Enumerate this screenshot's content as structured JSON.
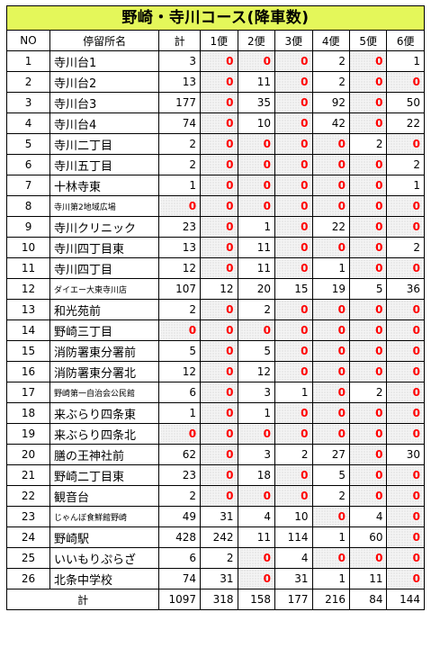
{
  "title": "野崎・寺川コース(降車数)",
  "headers": [
    "NO",
    "停留所名",
    "計",
    "1便",
    "2便",
    "3便",
    "4便",
    "5便",
    "6便"
  ],
  "rows": [
    {
      "no": "1",
      "name": "寺川台1",
      "total": 3,
      "trips": [
        0,
        0,
        0,
        2,
        0,
        1
      ]
    },
    {
      "no": "2",
      "name": "寺川台2",
      "total": 13,
      "trips": [
        0,
        11,
        0,
        2,
        0,
        0
      ]
    },
    {
      "no": "3",
      "name": "寺川台3",
      "total": 177,
      "trips": [
        0,
        35,
        0,
        92,
        0,
        50
      ]
    },
    {
      "no": "4",
      "name": "寺川台4",
      "total": 74,
      "trips": [
        0,
        10,
        0,
        42,
        0,
        22
      ]
    },
    {
      "no": "5",
      "name": "寺川二丁目",
      "total": 2,
      "trips": [
        0,
        0,
        0,
        0,
        2,
        0
      ]
    },
    {
      "no": "6",
      "name": "寺川五丁目",
      "total": 2,
      "trips": [
        0,
        0,
        0,
        0,
        0,
        2
      ]
    },
    {
      "no": "7",
      "name": "十林寺東",
      "total": 1,
      "trips": [
        0,
        0,
        0,
        0,
        0,
        1
      ]
    },
    {
      "no": "8",
      "name": "寺川第2地域広場",
      "total": 0,
      "trips": [
        0,
        0,
        0,
        0,
        0,
        0
      ]
    },
    {
      "no": "9",
      "name": "寺川クリニック",
      "total": 23,
      "trips": [
        0,
        1,
        0,
        22,
        0,
        0
      ]
    },
    {
      "no": "10",
      "name": "寺川四丁目東",
      "total": 13,
      "trips": [
        0,
        11,
        0,
        0,
        0,
        2
      ]
    },
    {
      "no": "11",
      "name": "寺川四丁目",
      "total": 12,
      "trips": [
        0,
        11,
        0,
        1,
        0,
        0
      ]
    },
    {
      "no": "12",
      "name": "ダイエー大東寺川店",
      "total": 107,
      "trips": [
        12,
        20,
        15,
        19,
        5,
        36
      ]
    },
    {
      "no": "13",
      "name": "和光苑前",
      "total": 2,
      "trips": [
        0,
        2,
        0,
        0,
        0,
        0
      ]
    },
    {
      "no": "14",
      "name": "野崎三丁目",
      "total": 0,
      "trips": [
        0,
        0,
        0,
        0,
        0,
        0
      ]
    },
    {
      "no": "15",
      "name": "消防署東分署前",
      "total": 5,
      "trips": [
        0,
        5,
        0,
        0,
        0,
        0
      ]
    },
    {
      "no": "16",
      "name": "消防署東分署北",
      "total": 12,
      "trips": [
        0,
        12,
        0,
        0,
        0,
        0
      ]
    },
    {
      "no": "17",
      "name": "野崎第一自治会公民館",
      "total": 6,
      "trips": [
        0,
        3,
        1,
        0,
        2,
        0
      ]
    },
    {
      "no": "18",
      "name": "来ぶらり四条東",
      "total": 1,
      "trips": [
        0,
        1,
        0,
        0,
        0,
        0
      ]
    },
    {
      "no": "19",
      "name": "来ぶらり四条北",
      "total": 0,
      "trips": [
        0,
        0,
        0,
        0,
        0,
        0
      ]
    },
    {
      "no": "20",
      "name": "膳の王神社前",
      "total": 62,
      "trips": [
        0,
        3,
        2,
        27,
        0,
        30
      ]
    },
    {
      "no": "21",
      "name": "野崎二丁目東",
      "total": 23,
      "trips": [
        0,
        18,
        0,
        5,
        0,
        0
      ]
    },
    {
      "no": "22",
      "name": "観音台",
      "total": 2,
      "trips": [
        0,
        0,
        0,
        2,
        0,
        0
      ]
    },
    {
      "no": "23",
      "name": "じゃんぼ食鮮館野崎",
      "total": 49,
      "trips": [
        31,
        4,
        10,
        0,
        4,
        0
      ]
    },
    {
      "no": "24",
      "name": "野崎駅",
      "total": 428,
      "trips": [
        242,
        11,
        114,
        1,
        60,
        0
      ]
    },
    {
      "no": "25",
      "name": "いいもりぷらざ",
      "total": 6,
      "trips": [
        2,
        0,
        4,
        0,
        0,
        0
      ]
    },
    {
      "no": "26",
      "name": "北条中学校",
      "total": 74,
      "trips": [
        31,
        0,
        31,
        1,
        11,
        0
      ]
    }
  ],
  "footer": {
    "label": "計",
    "total": 1097,
    "trips": [
      318,
      158,
      177,
      216,
      84,
      144
    ]
  },
  "colors": {
    "title_bg": "#e4f75a",
    "zero_text": "#ff0000"
  }
}
